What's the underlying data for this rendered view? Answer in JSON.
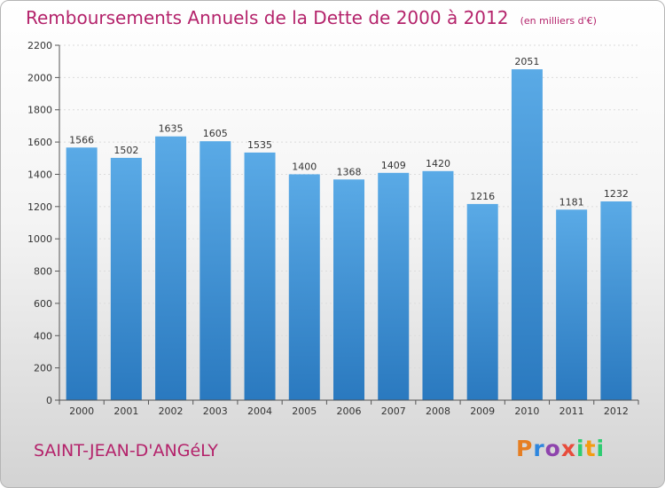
{
  "title": "Remboursements Annuels de la Dette de 2000 à 2012",
  "unit": "(en milliers d'€)",
  "city": "SAINT-JEAN-D'ANGéLY",
  "logo": {
    "text": "Proxiti",
    "letters": [
      "P",
      "r",
      "o",
      "x",
      "i",
      "t",
      "i"
    ]
  },
  "colors": {
    "accent": "#b4236b",
    "bar_top": "#5aaae6",
    "bar_bottom": "#2a79bf"
  },
  "chart_data": {
    "type": "bar",
    "title": "Remboursements Annuels de la Dette de 2000 à 2012",
    "subtitle": "(en milliers d'€)",
    "xlabel": "",
    "ylabel": "",
    "categories": [
      "2000",
      "2001",
      "2002",
      "2003",
      "2004",
      "2005",
      "2006",
      "2007",
      "2008",
      "2009",
      "2010",
      "2011",
      "2012"
    ],
    "values": [
      1566,
      1502,
      1635,
      1605,
      1535,
      1400,
      1368,
      1409,
      1420,
      1216,
      2051,
      1181,
      1232
    ],
    "ylim": [
      0,
      2200
    ],
    "yticks": [
      0,
      200,
      400,
      600,
      800,
      1000,
      1200,
      1400,
      1600,
      1800,
      2000,
      2200
    ],
    "grid": true,
    "legend": "none"
  }
}
